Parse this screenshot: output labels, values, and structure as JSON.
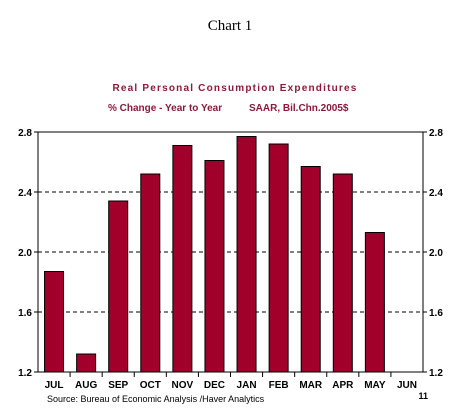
{
  "heading": "Chart 1",
  "chart_data": {
    "type": "bar",
    "title": "Real Personal Consumption Expenditures",
    "subtitle_left": "% Change - Year to Year",
    "subtitle_right": "SAAR, Bil.Chn.2005$",
    "categories": [
      "JUL",
      "AUG",
      "SEP",
      "OCT",
      "NOV",
      "DEC",
      "JAN",
      "FEB",
      "MAR",
      "APR",
      "MAY",
      "JUN"
    ],
    "values": [
      1.87,
      1.32,
      2.34,
      2.52,
      2.71,
      2.61,
      2.77,
      2.72,
      2.57,
      2.52,
      2.13,
      null
    ],
    "ylim": [
      1.2,
      2.8
    ],
    "yticks": [
      "1.2",
      "1.6",
      "2.0",
      "2.4",
      "2.8"
    ],
    "year_label": "11",
    "grid": "horizontal dashed",
    "bar_color": "#a0002a",
    "source": "Source:  Bureau of Economic Analysis /Haver Analytics"
  }
}
